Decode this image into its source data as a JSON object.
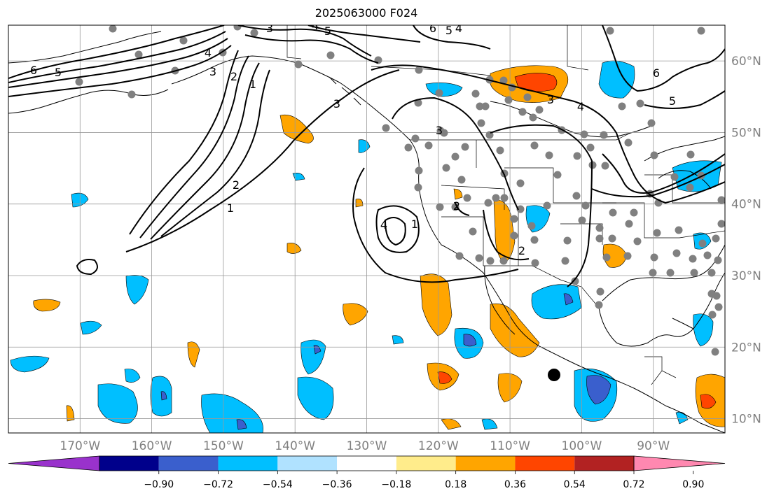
{
  "title": "2025063000 F024",
  "map": {
    "lon_range": [
      -180,
      -80
    ],
    "lat_range": [
      8,
      65
    ],
    "lon_labels": [
      "170°W",
      "160°W",
      "150°W",
      "140°W",
      "130°W",
      "120°W",
      "110°W",
      "100°W",
      "90°W"
    ],
    "lat_labels": [
      "10°N",
      "20°N",
      "30°N",
      "40°N",
      "50°N",
      "60°N"
    ],
    "label_color": "#808080",
    "grid": true
  },
  "colorbar": {
    "ticks": [
      "−0.90",
      "−0.72",
      "−0.54",
      "−0.36",
      "−0.18",
      "0.18",
      "0.36",
      "0.54",
      "0.72",
      "0.90"
    ],
    "colors": [
      "#9932cc",
      "#00008b",
      "#3a5fcd",
      "#00bfff",
      "#b0e2ff",
      "#ffffff",
      "#ffec8b",
      "#ffa500",
      "#ff4500",
      "#b22222",
      "#ff88b0"
    ]
  },
  "contour_labels": [
    "6",
    "5",
    "4",
    "3",
    "2",
    "1",
    "3",
    "4",
    "5",
    "6",
    "5",
    "4",
    "3",
    "2",
    "1",
    "3",
    "4",
    "1",
    "2",
    "2",
    "3",
    "4",
    "6",
    "5"
  ],
  "marker_color": "#000000",
  "station_color": "#808080"
}
